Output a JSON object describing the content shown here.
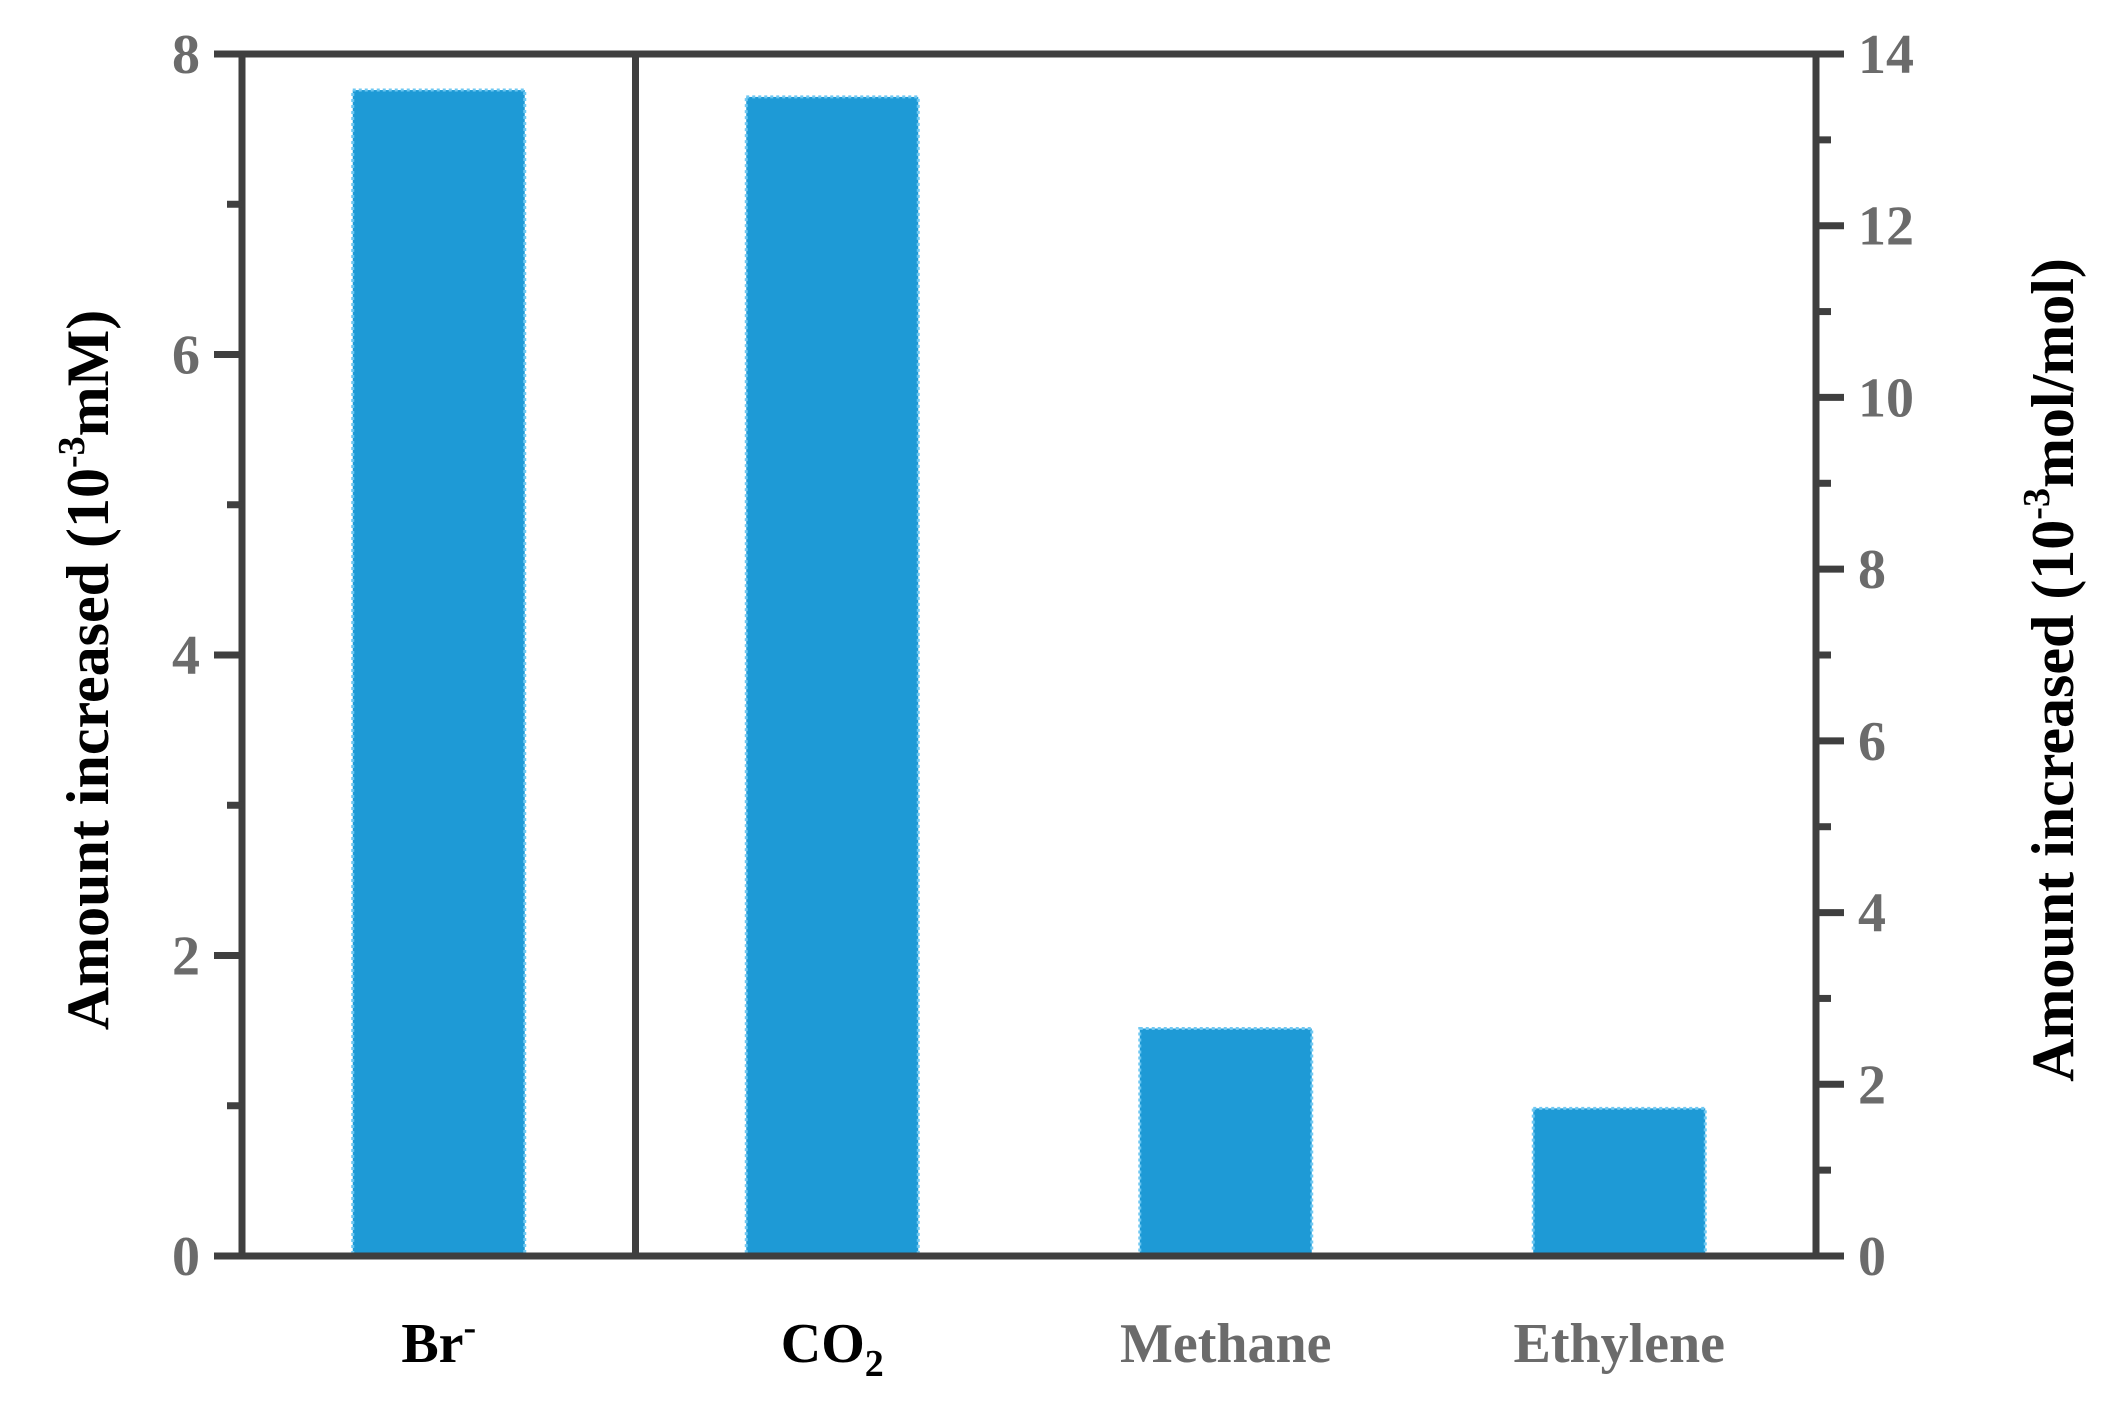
{
  "chart_data": {
    "type": "bar",
    "categories": [
      {
        "main": "Br",
        "sup": "-",
        "sub": "",
        "color": "#000000",
        "axis": "left"
      },
      {
        "main": "CO",
        "sup": "",
        "sub": "2",
        "color": "#000000",
        "axis": "right"
      },
      {
        "main": "Methane",
        "sup": "",
        "sub": "",
        "color": "#6b6b6b",
        "axis": "right"
      },
      {
        "main": "Ethylene",
        "sup": "",
        "sub": "",
        "color": "#6b6b6b",
        "axis": "right"
      }
    ],
    "values": [
      7.76,
      13.5,
      2.65,
      1.72
    ],
    "bar_color": "#1e9ad6",
    "bar_edge_color": "#6fc8f2",
    "left_axis": {
      "label_prefix": "Amount increased (10",
      "label_sup": "-3",
      "label_suffix": "mM)",
      "ylim": [
        0,
        8
      ],
      "major_ticks": [
        0,
        2,
        4,
        6,
        8
      ],
      "minor_ticks": [
        1,
        3,
        5,
        7
      ]
    },
    "right_axis": {
      "label_prefix": "Amount increased (10",
      "label_sup": "-3",
      "label_suffix": "mol/mol)",
      "ylim": [
        0,
        14
      ],
      "major_ticks": [
        0,
        2,
        4,
        6,
        8,
        10,
        12,
        14
      ],
      "minor_ticks": [
        1,
        3,
        5,
        7,
        9,
        11,
        13
      ]
    },
    "divider_after_category": 0,
    "grid": false,
    "legend": "none"
  }
}
